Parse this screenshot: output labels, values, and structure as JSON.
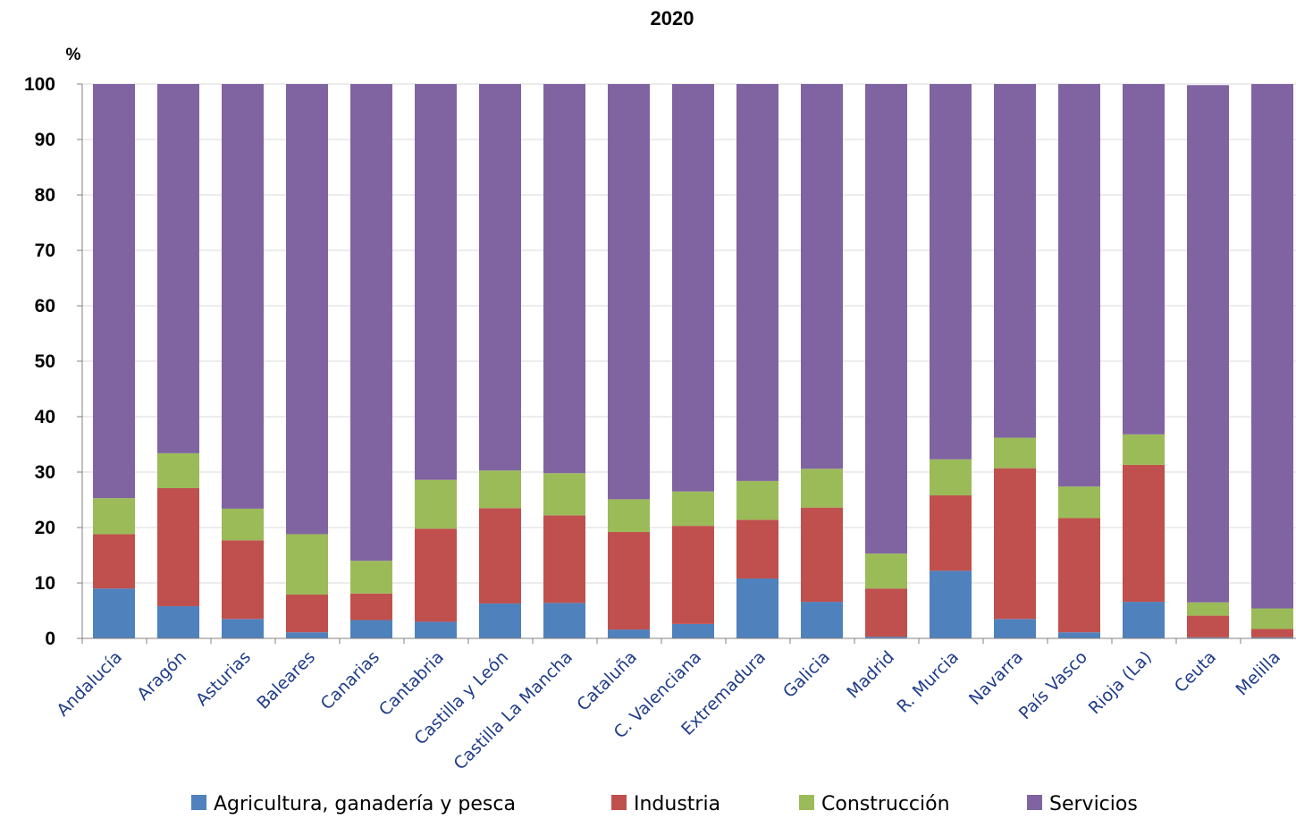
{
  "chart_data": {
    "type": "bar",
    "stacked": true,
    "title": "2020",
    "ylabel": "%",
    "xlabel": "",
    "ylim": [
      0,
      100
    ],
    "yticks": [
      0,
      10,
      20,
      30,
      40,
      50,
      60,
      70,
      80,
      90,
      100
    ],
    "grid": true,
    "legend_position": "bottom",
    "categories": [
      "Andalucía",
      "Aragón",
      "Asturias",
      "Baleares",
      "Canarias",
      "Cantabria",
      "Castilla y León",
      "Castilla La Mancha",
      "Cataluña",
      "C. Valenciana",
      "Extremadura",
      "Galicia",
      "Madrid",
      "R. Murcia",
      "Navarra",
      "País Vasco",
      "Rioja (La)",
      "Ceuta",
      "Melilla"
    ],
    "series": [
      {
        "name": "Agricultura, ganadería y pesca",
        "color": "#4f81bd",
        "values": [
          9.0,
          5.8,
          3.5,
          1.1,
          3.3,
          3.0,
          6.3,
          6.4,
          1.6,
          2.6,
          10.8,
          6.6,
          0.3,
          12.2,
          3.5,
          1.1,
          6.6,
          0.2,
          0.2
        ]
      },
      {
        "name": "Industria",
        "color": "#c0504d",
        "values": [
          9.8,
          21.3,
          14.2,
          6.8,
          4.8,
          16.8,
          17.2,
          15.8,
          17.6,
          17.7,
          10.6,
          17.0,
          8.7,
          13.6,
          27.2,
          20.6,
          24.7,
          3.9,
          1.5
        ]
      },
      {
        "name": "Construcción",
        "color": "#9bbb59",
        "values": [
          6.5,
          6.3,
          5.7,
          10.9,
          5.9,
          8.8,
          6.8,
          7.6,
          5.9,
          6.2,
          7.0,
          7.0,
          6.3,
          6.5,
          5.5,
          5.7,
          5.5,
          2.4,
          3.7
        ]
      },
      {
        "name": "Servicios",
        "color": "#8064a2",
        "values": [
          74.7,
          66.6,
          76.6,
          81.2,
          86.0,
          71.4,
          69.7,
          70.2,
          74.9,
          73.5,
          71.6,
          69.4,
          84.7,
          67.7,
          63.8,
          72.6,
          63.2,
          93.3,
          94.6
        ]
      }
    ]
  }
}
